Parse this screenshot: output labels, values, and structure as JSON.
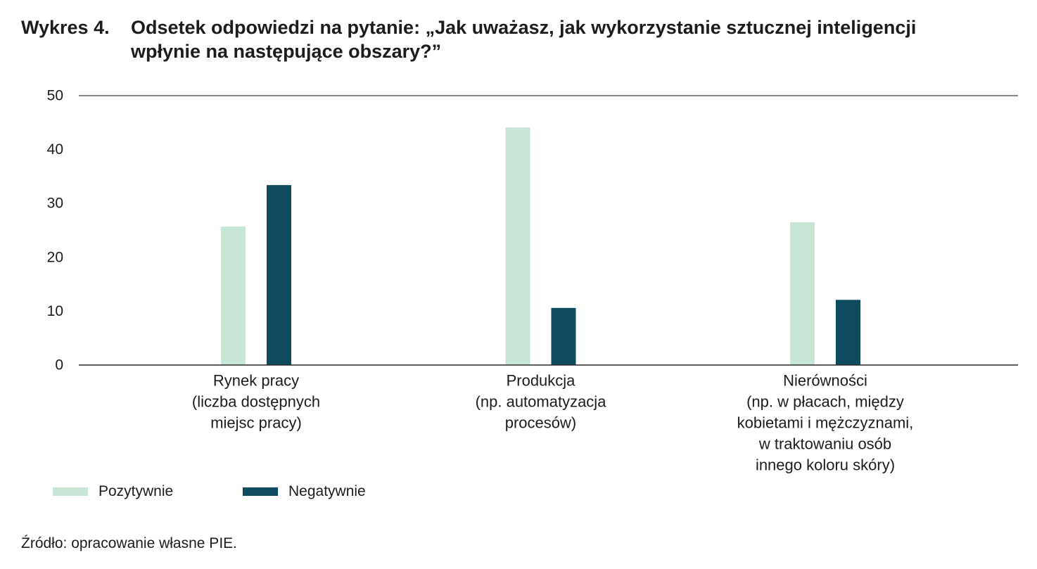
{
  "chart_data": {
    "type": "bar",
    "figure_label": "Wykres 4.",
    "title_lines": [
      "Odsetek odpowiedzi na pytanie: „Jak uważasz, jak wykorzystanie sztucznej inteligencji",
      "wpłynie na następujące obszary?”"
    ],
    "categories": [
      [
        "Rynek pracy",
        "(liczba dostępnych",
        "miejsc pracy)"
      ],
      [
        "Produkcja",
        "(np. automatyzacja",
        "procesów)"
      ],
      [
        "Nierówności",
        "(np. w płacach, między",
        "kobietami i mężczyznami,",
        "w traktowaniu osób",
        "innego koloru skóry)"
      ]
    ],
    "series": [
      {
        "name": "Pozytywnie",
        "color": "#c8e6d6",
        "values": [
          25.7,
          44.1,
          26.5
        ]
      },
      {
        "name": "Negatywnie",
        "color": "#0e4b5e",
        "values": [
          33.4,
          10.6,
          12.1
        ]
      }
    ],
    "ylim": [
      0,
      50
    ],
    "yticks": [
      0,
      10,
      20,
      30,
      40,
      50
    ],
    "grid": false,
    "legend_position": "bottom-left"
  },
  "source": "Źródło: opracowanie własne PIE."
}
